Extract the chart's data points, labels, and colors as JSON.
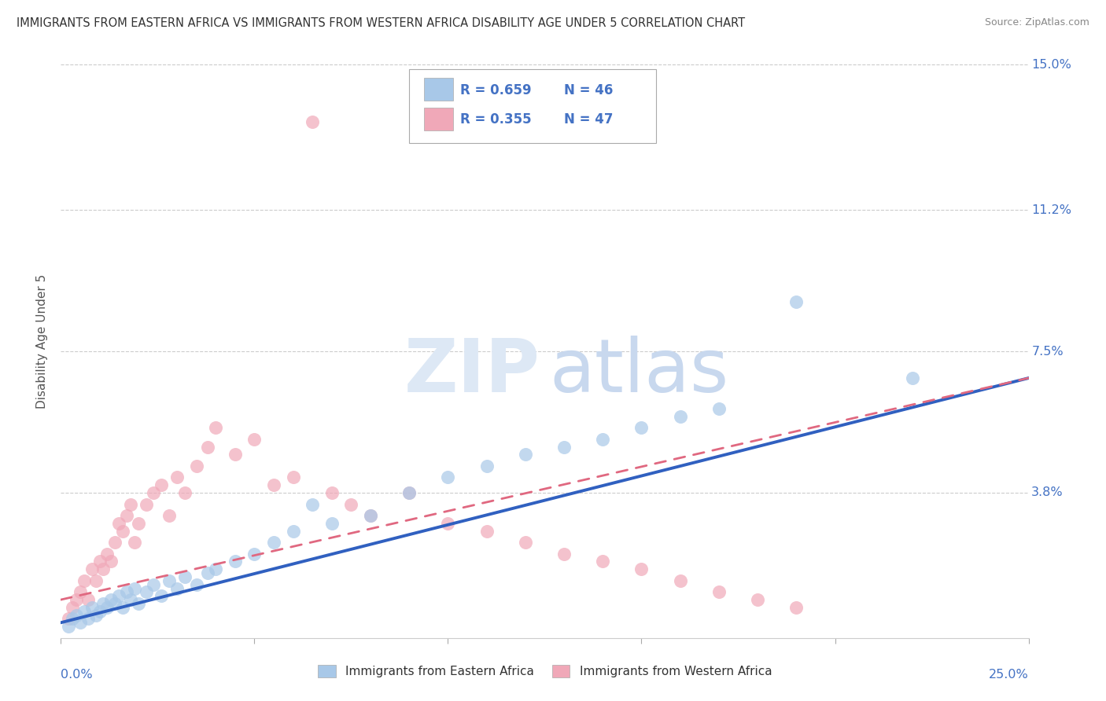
{
  "title": "IMMIGRANTS FROM EASTERN AFRICA VS IMMIGRANTS FROM WESTERN AFRICA DISABILITY AGE UNDER 5 CORRELATION CHART",
  "source": "Source: ZipAtlas.com",
  "ylabel": "Disability Age Under 5",
  "ytick_vals": [
    0.038,
    0.075,
    0.112,
    0.15
  ],
  "ytick_labels": [
    "3.8%",
    "7.5%",
    "11.2%",
    "15.0%"
  ],
  "xlim": [
    0.0,
    0.25
  ],
  "ylim": [
    0.0,
    0.155
  ],
  "legend_blue_r": "R = 0.659",
  "legend_blue_n": "N = 46",
  "legend_pink_r": "R = 0.355",
  "legend_pink_n": "N = 47",
  "blue_color": "#a8c8e8",
  "pink_color": "#f0a8b8",
  "blue_line_color": "#3060c0",
  "pink_line_color": "#e06880",
  "axis_label_color": "#4472c4",
  "background_color": "#ffffff",
  "blue_scatter_x": [
    0.002,
    0.003,
    0.004,
    0.005,
    0.006,
    0.007,
    0.008,
    0.009,
    0.01,
    0.011,
    0.012,
    0.013,
    0.014,
    0.015,
    0.016,
    0.017,
    0.018,
    0.019,
    0.02,
    0.022,
    0.024,
    0.026,
    0.028,
    0.03,
    0.032,
    0.035,
    0.038,
    0.04,
    0.045,
    0.05,
    0.055,
    0.06,
    0.065,
    0.07,
    0.08,
    0.09,
    0.1,
    0.11,
    0.12,
    0.13,
    0.14,
    0.15,
    0.16,
    0.17,
    0.19,
    0.22
  ],
  "blue_scatter_y": [
    0.003,
    0.005,
    0.006,
    0.004,
    0.007,
    0.005,
    0.008,
    0.006,
    0.007,
    0.009,
    0.008,
    0.01,
    0.009,
    0.011,
    0.008,
    0.012,
    0.01,
    0.013,
    0.009,
    0.012,
    0.014,
    0.011,
    0.015,
    0.013,
    0.016,
    0.014,
    0.017,
    0.018,
    0.02,
    0.022,
    0.025,
    0.028,
    0.035,
    0.03,
    0.032,
    0.038,
    0.042,
    0.045,
    0.048,
    0.05,
    0.052,
    0.055,
    0.058,
    0.06,
    0.088,
    0.068
  ],
  "pink_scatter_x": [
    0.002,
    0.003,
    0.004,
    0.005,
    0.006,
    0.007,
    0.008,
    0.009,
    0.01,
    0.011,
    0.012,
    0.013,
    0.014,
    0.015,
    0.016,
    0.017,
    0.018,
    0.019,
    0.02,
    0.022,
    0.024,
    0.026,
    0.028,
    0.03,
    0.032,
    0.035,
    0.038,
    0.04,
    0.045,
    0.05,
    0.055,
    0.06,
    0.065,
    0.07,
    0.075,
    0.08,
    0.09,
    0.1,
    0.11,
    0.12,
    0.13,
    0.14,
    0.15,
    0.16,
    0.17,
    0.18,
    0.19
  ],
  "pink_scatter_y": [
    0.005,
    0.008,
    0.01,
    0.012,
    0.015,
    0.01,
    0.018,
    0.015,
    0.02,
    0.018,
    0.022,
    0.02,
    0.025,
    0.03,
    0.028,
    0.032,
    0.035,
    0.025,
    0.03,
    0.035,
    0.038,
    0.04,
    0.032,
    0.042,
    0.038,
    0.045,
    0.05,
    0.055,
    0.048,
    0.052,
    0.04,
    0.042,
    0.135,
    0.038,
    0.035,
    0.032,
    0.038,
    0.03,
    0.028,
    0.025,
    0.022,
    0.02,
    0.018,
    0.015,
    0.012,
    0.01,
    0.008
  ],
  "blue_line_x0": 0.0,
  "blue_line_y0": 0.004,
  "blue_line_x1": 0.25,
  "blue_line_y1": 0.068,
  "pink_line_x0": 0.0,
  "pink_line_y0": 0.01,
  "pink_line_x1": 0.25,
  "pink_line_y1": 0.068
}
